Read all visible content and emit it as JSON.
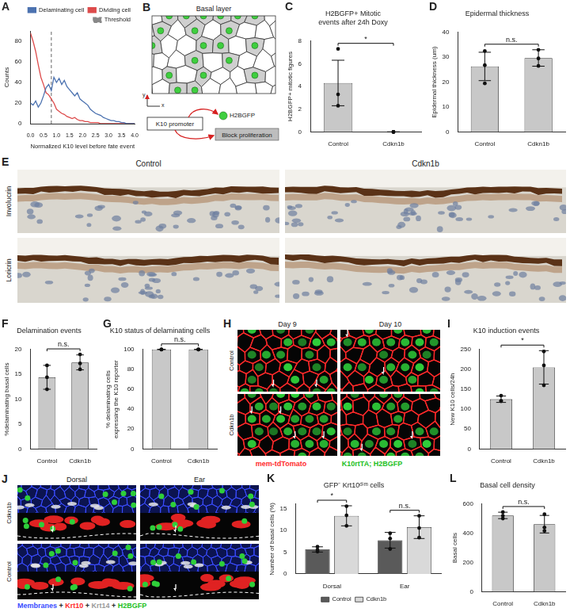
{
  "chart_data": [
    {
      "panel_label": "A",
      "type": "line",
      "x": [
        0,
        0.1,
        0.2,
        0.3,
        0.4,
        0.5,
        0.6,
        0.7,
        0.8,
        0.9,
        1,
        1.1,
        1.2,
        1.3,
        1.4,
        1.5,
        1.6,
        1.7,
        1.8,
        1.9,
        2,
        2.1,
        2.2,
        2.3,
        2.4,
        2.5,
        2.6,
        2.7,
        2.8,
        2.9,
        3,
        3.1,
        3.2,
        3.3,
        3.4,
        3.5,
        3.6,
        3.7,
        3.8,
        3.9,
        4
      ],
      "series": [
        {
          "name": "Delaminating cell",
          "color": "#4c72b0",
          "line_style": "solid",
          "values": [
            20,
            18,
            22,
            16,
            20,
            27,
            35,
            38,
            32,
            45,
            40,
            44,
            38,
            42,
            36,
            33,
            30,
            27,
            30,
            24,
            22,
            20,
            18,
            14,
            12,
            10,
            9,
            8,
            6,
            5,
            4,
            3,
            3,
            2,
            2,
            1,
            1,
            0,
            0,
            0,
            0
          ]
        },
        {
          "name": "Dividing cell",
          "color": "#dd4b4b",
          "line_style": "solid",
          "values": [
            88,
            80,
            70,
            57,
            45,
            38,
            30,
            28,
            24,
            20,
            14,
            12,
            10,
            9,
            7,
            6,
            5,
            6,
            4,
            3,
            3,
            2,
            2,
            1,
            1,
            1,
            1,
            0,
            0,
            0,
            0,
            0,
            0,
            0,
            0,
            0,
            0,
            0,
            0,
            0,
            0
          ]
        },
        {
          "name": "Threshold",
          "color": "#888888",
          "line_style": "dashed",
          "x": [
            0.8,
            0.8
          ],
          "values": [
            0,
            90
          ]
        }
      ],
      "xlabel": "Normalized K10 level before fate event",
      "ylabel": "Counts",
      "xlim": [
        0,
        4
      ],
      "xticks": [
        {
          "value": 0,
          "label": "0.0"
        },
        {
          "value": 0.5,
          "label": "0.5"
        },
        {
          "value": 1,
          "label": "1.0"
        },
        {
          "value": 1.5,
          "label": "1.5"
        },
        {
          "value": 2,
          "label": "2.0"
        },
        {
          "value": 2.5,
          "label": "2.5"
        },
        {
          "value": 3,
          "label": "3.0"
        },
        {
          "value": 3.5,
          "label": "3.5"
        },
        {
          "value": 4,
          "label": "4.0"
        }
      ],
      "ylim": [
        0,
        90
      ],
      "yticks": [
        0,
        20,
        40,
        60,
        80
      ],
      "legend": "top",
      "grid": false
    },
    {
      "panel_label": "C",
      "type": "bar",
      "title": [
        "H2BGFP+ Mitotic",
        "events after 24h Doxy"
      ],
      "ylabel": "H2BGFP+ mitotic figures",
      "categories": [
        "Control",
        "Cdkn1b"
      ],
      "values": [
        4.3,
        0
      ],
      "errors": [
        2,
        0
      ],
      "points": [
        [
          7.3,
          3.3,
          2.3
        ],
        [
          0,
          0,
          0
        ]
      ],
      "color": "#c8c8c8",
      "ylim": [
        0,
        8
      ],
      "yticks": [
        0,
        2,
        4,
        6,
        8
      ],
      "significance": "*",
      "grid": false
    },
    {
      "panel_label": "D",
      "type": "bar",
      "title": "Epidermal thickness",
      "ylabel": "Epidermal thickness (um)",
      "categories": [
        "Control",
        "Cdkn1b"
      ],
      "values": [
        26.3,
        29.7
      ],
      "errors": [
        5.7,
        3.3
      ],
      "points": [
        [
          32.5,
          26.8,
          19.5
        ],
        [
          33,
          29.5,
          26.5
        ]
      ],
      "color": "#c8c8c8",
      "ylim": [
        0,
        40
      ],
      "yticks": [
        0,
        10,
        20,
        30,
        40
      ],
      "significance": "n.s.",
      "grid": false
    },
    {
      "panel_label": "F",
      "type": "bar",
      "title": "Delamination events",
      "ylabel": "%delaminating basal cells",
      "categories": [
        "Control",
        "Cdkn1b"
      ],
      "values": [
        14.4,
        17.4
      ],
      "errors": [
        2.4,
        1.5
      ],
      "points": [
        [
          16.8,
          14.4,
          12
        ],
        [
          19,
          17.2,
          16
        ]
      ],
      "color": "#c8c8c8",
      "ylim": [
        0,
        20
      ],
      "yticks": [
        0,
        5,
        10,
        15,
        20
      ],
      "significance": "n.s.",
      "grid": false
    },
    {
      "panel_label": "G",
      "type": "bar",
      "title": "K10 status of delaminating cells",
      "ylabel": [
        "% delaminating cells",
        "expressing the K10 reporter"
      ],
      "categories": [
        "Control",
        "Cdkn1b"
      ],
      "values": [
        100,
        100
      ],
      "errors": [
        0,
        0
      ],
      "points": [
        [
          100,
          100,
          100
        ],
        [
          100,
          100,
          100
        ]
      ],
      "color": "#c8c8c8",
      "ylim": [
        0,
        100
      ],
      "yticks": [
        0,
        20,
        40,
        60,
        80,
        100
      ],
      "significance": "n.s.",
      "grid": false
    },
    {
      "panel_label": "I",
      "type": "bar",
      "title": "K10 induction events",
      "ylabel": "New K10 cells/24h",
      "categories": [
        "Control",
        "Cdkn1b"
      ],
      "values": [
        125,
        205
      ],
      "errors": [
        8,
        42
      ],
      "points": [
        [
          134,
          120,
          121
        ],
        [
          245,
          210,
          160
        ]
      ],
      "color": "#c8c8c8",
      "ylim": [
        0,
        250
      ],
      "yticks": [
        0,
        50,
        100,
        150,
        200,
        250
      ],
      "significance": "*",
      "grid": false
    },
    {
      "panel_label": "K",
      "type": "bar",
      "title": "GFP⁻ Krt10ᵈⁱᵐ cells",
      "ylabel": "Number of basal cells (%)",
      "categories": [
        "Dorsal",
        "Ear"
      ],
      "series": [
        {
          "name": "Control",
          "color": "#5a5a5a",
          "values": [
            5.6,
            7.7
          ],
          "errors": [
            0.6,
            1.8
          ],
          "points": [
            [
              6.2,
              5.5,
              5.1
            ],
            [
              9.3,
              8.1,
              5.7
            ]
          ]
        },
        {
          "name": "Cdkn1b",
          "color": "#d9d9d9",
          "values": [
            13.3,
            10.7
          ],
          "errors": [
            2.3,
            2.6
          ],
          "points": [
            [
              15.5,
              13.4,
              11
            ],
            [
              13.3,
              10.5,
              8.3
            ]
          ]
        }
      ],
      "ylim": [
        0,
        16
      ],
      "yticks": [
        0,
        5,
        10,
        15
      ],
      "significance": [
        "*",
        "n.s."
      ],
      "legend": "bottom",
      "grid": false
    },
    {
      "panel_label": "L",
      "type": "bar",
      "title": "Basal cell density",
      "ylabel": "Basal cells",
      "categories": [
        "Control",
        "Cdkn1b"
      ],
      "values": [
        522,
        462
      ],
      "errors": [
        22,
        60
      ],
      "points": [
        [
          545,
          520,
          501
        ],
        [
          530,
          440,
          416
        ]
      ],
      "color": "#c8c8c8",
      "ylim": [
        0,
        600
      ],
      "yticks": [
        0,
        200,
        400,
        600
      ],
      "significance": "n.s.",
      "grid": false
    }
  ],
  "diagram": {
    "panel_label": "B",
    "title": "Basal layer",
    "axis_labels": [
      "y",
      "x"
    ],
    "promoter": "K10 promoter",
    "reporter": "H2BGFP",
    "effect": "Block proliferation"
  },
  "micrographs": [
    {
      "panel_label": "E",
      "columns": [
        "Control",
        "Cdkn1b"
      ],
      "rows": [
        "Involucrin",
        "Loricrin"
      ]
    },
    {
      "panel_label": "H",
      "columns": [
        "Day 9",
        "Day 10"
      ],
      "rows": [
        "Control",
        "Cdkn1b"
      ],
      "channels": [
        {
          "name": "mem-tdTomato",
          "color": "#ff2a2a"
        },
        {
          "name": "K10rtTA; H2BGFP",
          "color": "#22c022"
        }
      ]
    },
    {
      "panel_label": "J",
      "columns": [
        "Dorsal",
        "Ear"
      ],
      "rows": [
        "Cdkn1b",
        "Control"
      ],
      "separator": " + ",
      "channels": [
        {
          "name": "Membranes",
          "color": "#3a4cff"
        },
        {
          "name": "Krt10",
          "color": "#ff2a2a"
        },
        {
          "name": "Krt14",
          "color": "#9a9a9a"
        },
        {
          "name": "H2BGFP",
          "color": "#22c022"
        }
      ]
    }
  ]
}
